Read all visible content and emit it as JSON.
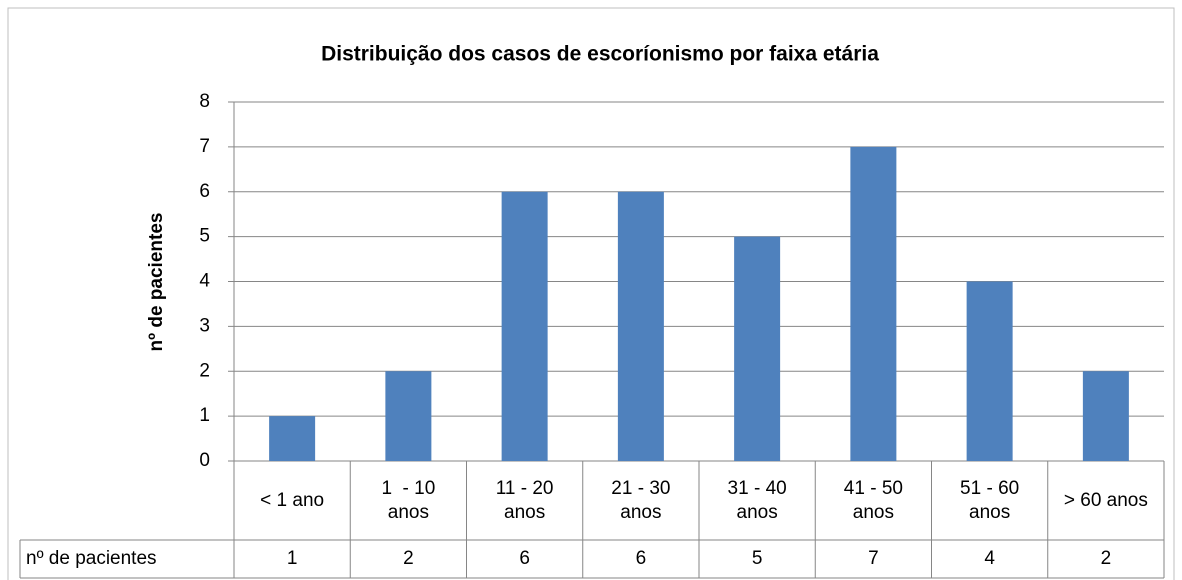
{
  "chart_data": {
    "type": "bar",
    "title": "Distribuição dos casos de escoríonismo por faixa etária",
    "y_label": "nº de pacientes",
    "table_row_label": "nº de pacientes",
    "categories": [
      "< 1 ano",
      "1  - 10 anos",
      "11 - 20 anos",
      "21 - 30 anos",
      "31 - 40 anos",
      "41 - 50 anos",
      "51 - 60 anos",
      "> 60 anos"
    ],
    "values": [
      1,
      2,
      6,
      6,
      5,
      7,
      4,
      2
    ],
    "color": "#4f81bd",
    "ylim": [
      0,
      8
    ],
    "yticks": [
      0,
      1,
      2,
      3,
      4,
      5,
      6,
      7,
      8
    ],
    "grid": true
  }
}
